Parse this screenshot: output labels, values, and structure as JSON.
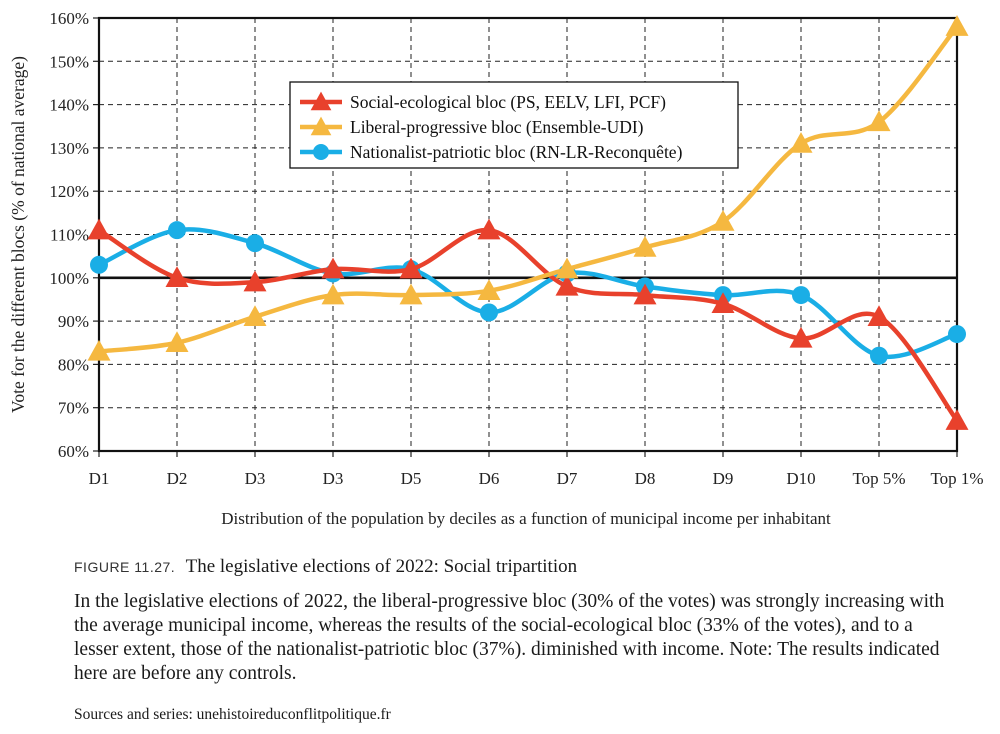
{
  "chart_data": {
    "type": "line",
    "categories": [
      "D1",
      "D2",
      "D3",
      "D3",
      "D5",
      "D6",
      "D7",
      "D8",
      "D9",
      "D10",
      "Top 5%",
      "Top 1%"
    ],
    "ylabel": "Vote for the different blocs (% of national average)",
    "xlabel": "Distribution of the population by deciles as a function of municipal income per inhabitant",
    "ylim": [
      60,
      160
    ],
    "yticks": [
      "60%",
      "70%",
      "80%",
      "90%",
      "100%",
      "110%",
      "120%",
      "130%",
      "140%",
      "150%",
      "160%"
    ],
    "grid": true,
    "reference_line": 100,
    "legend_position": "upper-center",
    "series": [
      {
        "name": "Social-ecological bloc (PS, EELV, LFI, PCF)",
        "color": "#e8412c",
        "marker": "triangle",
        "values": [
          111,
          100,
          99,
          102,
          102,
          111,
          98,
          96,
          94,
          86,
          91,
          67
        ]
      },
      {
        "name": "Liberal-progressive bloc (Ensemble-UDI)",
        "color": "#f5b840",
        "marker": "triangle",
        "values": [
          83,
          85,
          91,
          96,
          96,
          97,
          102,
          107,
          113,
          131,
          136,
          158
        ]
      },
      {
        "name": "Nationalist-patriotic bloc (RN-LR-Reconquête)",
        "color": "#1aaee6",
        "marker": "circle",
        "values": [
          103,
          111,
          108,
          101,
          102,
          92,
          101,
          98,
          96,
          96,
          82,
          87
        ]
      }
    ]
  },
  "caption": {
    "label": "FIGURE 11.27.",
    "title": "The legislative elections of 2022: Social tripartition",
    "text": "In the legislative elections of 2022, the liberal-progressive bloc (30% of the votes) was strongly increasing with the average municipal income, whereas the results of the social-ecological bloc (33% of the votes), and to a lesser extent, those of the nationalist-patriotic bloc (37%). diminished with income. Note: The results indicated here are before any controls.",
    "sources": "Sources and series: unehistoireduconflitpolitique.fr"
  }
}
